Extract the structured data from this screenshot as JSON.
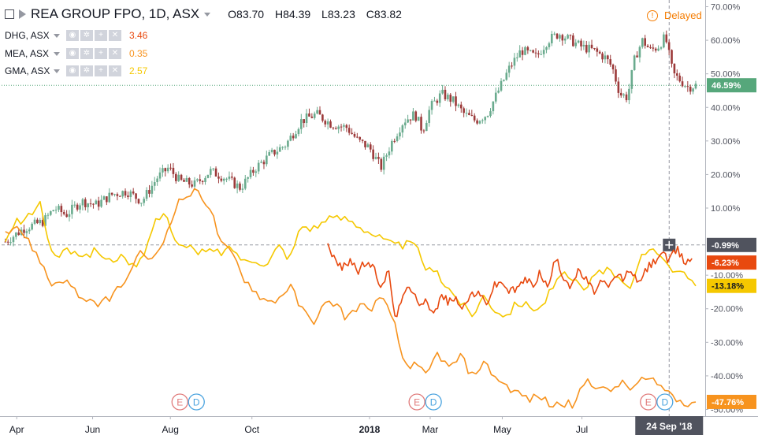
{
  "header": {
    "symbol": "REA GROUP FPO, 1D, ASX",
    "open_key": "O",
    "open": "83.70",
    "high_key": "H",
    "high": "84.39",
    "low_key": "L",
    "low": "83.23",
    "close_key": "C",
    "close": "83.82",
    "delayed": "Delayed",
    "delayed_icon": "!"
  },
  "comparisons": [
    {
      "name": "DHG, ASX",
      "value": "3.46",
      "color": "#e8490f"
    },
    {
      "name": "MEA, ASX",
      "value": "0.35",
      "color": "#f7931e"
    },
    {
      "name": "GMA, ASX",
      "value": "2.57",
      "color": "#f5c800"
    }
  ],
  "colors": {
    "up": "#6aab8e",
    "down": "#9c3a3a",
    "dhg": "#e8490f",
    "mea": "#f7931e",
    "gma": "#f5c800",
    "rea_label": "#56a77b",
    "axis_text": "#50535e"
  },
  "chart_data": {
    "type": "line",
    "title": "REA GROUP FPO, 1D, ASX",
    "y_unit": "%",
    "ylim": [
      -52,
      72
    ],
    "y_ticks": [
      "70.00%",
      "60.00%",
      "50.00%",
      "40.00%",
      "30.00%",
      "20.00%",
      "10.00%",
      "-10.00%",
      "-20.00%",
      "-30.00%",
      "-40.00%",
      "-50.00%"
    ],
    "y_tick_values": [
      70,
      60,
      50,
      40,
      30,
      20,
      10,
      -10,
      -20,
      -30,
      -40,
      -50
    ],
    "x_ticks": [
      "Apr",
      "Jun",
      "Aug",
      "Oct",
      "2018",
      "Mar",
      "May",
      "Jul"
    ],
    "x_tick_pos": [
      0.3,
      2.3,
      4.35,
      6.5,
      9.6,
      11.2,
      13.1,
      15.2
    ],
    "cursor_date": "24 Sep '18",
    "cursor_x": 17.5,
    "baseline_label": "-0.99%",
    "baseline_value": -0.99,
    "series": [
      {
        "name": "REA",
        "type": "candlestick",
        "last_label": "46.59%",
        "last": 46.59,
        "x": [
          0,
          0.5,
          1,
          1.3,
          1.6,
          2,
          2.4,
          2.8,
          3.2,
          3.6,
          4,
          4.3,
          4.6,
          5,
          5.4,
          5.8,
          6.2,
          6.6,
          7,
          7.4,
          7.8,
          8.2,
          8.6,
          9,
          9.3,
          9.6,
          9.9,
          10.2,
          10.5,
          10.8,
          11,
          11.2,
          11.5,
          11.8,
          12.1,
          12.4,
          12.7,
          13,
          13.3,
          13.6,
          14,
          14.3,
          14.6,
          14.9,
          15.2,
          15.5,
          15.8,
          16,
          16.2,
          16.4,
          16.6,
          16.8,
          17,
          17.2,
          17.4,
          17.6,
          17.8,
          18.0,
          18.2
        ],
        "y": [
          0,
          4,
          6,
          10,
          8,
          12,
          11,
          14,
          15,
          12,
          19,
          22,
          18,
          17,
          21,
          19,
          16,
          22,
          26,
          29,
          36,
          38,
          35,
          34,
          30,
          28,
          22,
          30,
          36,
          38,
          33,
          40,
          44,
          42,
          38,
          36,
          38,
          45,
          52,
          57,
          55,
          60,
          62,
          60,
          58,
          57,
          55,
          52,
          44,
          43,
          55,
          60,
          57,
          58,
          61,
          50,
          48,
          46,
          46.6
        ]
      },
      {
        "name": "DHG, ASX",
        "last_label": "-6.23%",
        "last": -6.23,
        "x": [
          8.5,
          8.7,
          8.9,
          9.1,
          9.3,
          9.5,
          9.7,
          9.9,
          10.1,
          10.3,
          10.5,
          10.7,
          10.9,
          11.1,
          11.3,
          11.5,
          11.7,
          11.9,
          12.1,
          12.3,
          12.5,
          12.7,
          12.9,
          13.1,
          13.3,
          13.5,
          13.7,
          13.9,
          14.1,
          14.3,
          14.5,
          14.7,
          14.9,
          15.1,
          15.3,
          15.5,
          15.7,
          15.9,
          16.1,
          16.3,
          16.5,
          16.7,
          16.9,
          17.1,
          17.3,
          17.5,
          17.7,
          17.9,
          18.1
        ],
        "y": [
          -0.5,
          -6,
          -8,
          -5,
          -9,
          -6,
          -8,
          -13,
          -9,
          -24,
          -14,
          -15,
          -18,
          -17,
          -22,
          -16,
          -18,
          -17,
          -20,
          -15,
          -16,
          -18,
          -13,
          -12,
          -15,
          -14,
          -11,
          -13,
          -9,
          -14,
          -5,
          -10,
          -13,
          -9,
          -11,
          -15,
          -12,
          -14,
          -10,
          -11,
          -8,
          -13,
          -8,
          -6,
          -3,
          -6,
          -2,
          -6,
          -5
        ]
      },
      {
        "name": "MEA, ASX",
        "last_label": "-47.76%",
        "last": -47.76,
        "x": [
          0,
          0.3,
          0.6,
          0.9,
          1.2,
          1.5,
          1.8,
          2.1,
          2.4,
          2.7,
          3.0,
          3.3,
          3.6,
          3.9,
          4.2,
          4.5,
          4.8,
          5.1,
          5.4,
          5.7,
          6.0,
          6.3,
          6.6,
          6.9,
          7.2,
          7.5,
          7.8,
          8.1,
          8.4,
          8.7,
          9.0,
          9.3,
          9.6,
          9.9,
          10.2,
          10.5,
          10.8,
          11.1,
          11.4,
          11.7,
          12.0,
          12.3,
          12.6,
          12.9,
          13.2,
          13.5,
          13.8,
          14.1,
          14.4,
          14.7,
          15.0,
          15.3,
          15.6,
          15.9,
          16.2,
          16.5,
          16.8,
          17.1,
          17.4,
          17.7,
          18.0,
          18.2
        ],
        "y": [
          3,
          5,
          0,
          -5,
          -13,
          -11,
          -14,
          -18,
          -19,
          -17,
          -14,
          -9,
          -3,
          -6,
          1,
          11,
          14,
          15,
          10,
          -1,
          -4,
          -11,
          -15,
          -18,
          -17,
          -13,
          -20,
          -24,
          -19,
          -18,
          -23,
          -19,
          -20,
          -17,
          -22,
          -36,
          -37,
          -40,
          -33,
          -38,
          -34,
          -40,
          -36,
          -40,
          -43,
          -45,
          -47,
          -46,
          -49,
          -48,
          -49,
          -41,
          -43,
          -45,
          -42,
          -44,
          -41,
          -42,
          -44,
          -47,
          -48,
          -47.8
        ]
      },
      {
        "name": "GMA, ASX",
        "last_label": "-13.18%",
        "last": -13.18,
        "x": [
          0,
          0.3,
          0.6,
          0.9,
          1.2,
          1.5,
          1.8,
          2.1,
          2.4,
          2.7,
          3.0,
          3.3,
          3.6,
          3.9,
          4.2,
          4.5,
          4.8,
          5.1,
          5.4,
          5.7,
          6.0,
          6.3,
          6.6,
          6.9,
          7.2,
          7.5,
          7.8,
          8.1,
          8.4,
          8.7,
          9.0,
          9.3,
          9.6,
          9.9,
          10.2,
          10.5,
          10.8,
          11.1,
          11.4,
          11.7,
          12.0,
          12.3,
          12.6,
          12.9,
          13.2,
          13.5,
          13.8,
          14.1,
          14.4,
          14.7,
          15.0,
          15.3,
          15.6,
          15.9,
          16.2,
          16.5,
          16.8,
          17.1,
          17.4,
          17.7,
          18.0,
          18.2
        ],
        "y": [
          0,
          6,
          7,
          12,
          -3,
          -4,
          -2,
          -5,
          -2,
          -6,
          -4,
          -8,
          -6,
          5,
          10,
          -1,
          -2,
          -3,
          -3,
          -3,
          -2,
          -6,
          -5,
          -7,
          -1,
          -5,
          5,
          4,
          6,
          7,
          7,
          5,
          3,
          1,
          -1,
          -1,
          -1,
          -8,
          -10,
          -14,
          -18,
          -22,
          -16,
          -20,
          -22,
          -18,
          -19,
          -20,
          -14,
          -10,
          -12,
          -15,
          -8,
          -9,
          -10,
          -14,
          -4,
          -1,
          -6,
          -9,
          -11,
          -13.2
        ]
      }
    ],
    "markers": [
      {
        "x": 4.6,
        "events": [
          {
            "letter": "E",
            "color": "#e07a7a"
          },
          {
            "letter": "D",
            "color": "#4aa3df"
          }
        ]
      },
      {
        "x": 10.85,
        "events": [
          {
            "letter": "E",
            "color": "#e07a7a"
          },
          {
            "letter": "D",
            "color": "#4aa3df"
          }
        ]
      },
      {
        "x": 16.95,
        "events": [
          {
            "letter": "E",
            "color": "#e07a7a"
          },
          {
            "letter": "D",
            "color": "#4aa3df"
          }
        ]
      }
    ]
  }
}
